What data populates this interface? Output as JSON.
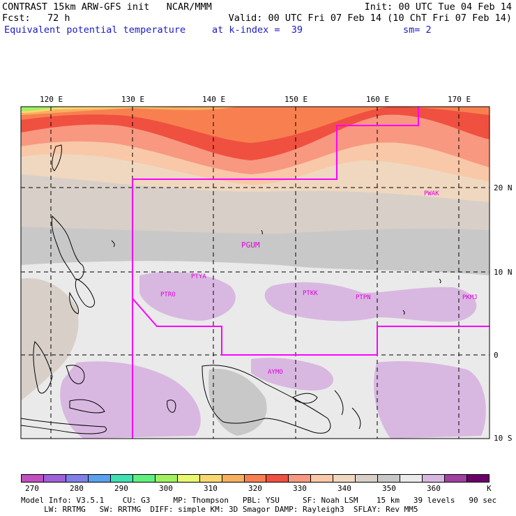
{
  "header": {
    "title": "CONTRAST 15km ARW-GFS init   NCAR/MMM",
    "init": "Init: 00 UTC Tue 04 Feb 14",
    "fcst": "Fcst:   72 h",
    "valid": "Valid: 00 UTC Fri 07 Feb 14 (10 ChT Fri 07 Feb 14)",
    "field": "Equivalent potential temperature",
    "level": "at k-index =  39",
    "smooth": "sm= 2"
  },
  "map": {
    "lon_labels": [
      "120 E",
      "130 E",
      "140 E",
      "150 E",
      "160 E",
      "170 E"
    ],
    "lat_labels": [
      "20 N",
      "10 N",
      "0",
      "10 S"
    ],
    "stations": [
      "PGUM",
      "PTYA",
      "PTRO",
      "PTKK",
      "PTPN",
      "PKMJ",
      "PWAK",
      "AYMO"
    ],
    "station_color": "#e000e0",
    "boundary_color": "#ff00ff"
  },
  "colorbar": {
    "labels": [
      "270",
      "280",
      "290",
      "300",
      "310",
      "320",
      "330",
      "340",
      "350",
      "360"
    ],
    "unit": "K",
    "colors": [
      "#c050c0",
      "#a060d8",
      "#8080e8",
      "#5aa0f0",
      "#40e0b0",
      "#60f080",
      "#a0f060",
      "#e8f870",
      "#f8d870",
      "#f8b060",
      "#f88050",
      "#f05040",
      "#f89880",
      "#f8c8a8",
      "#f0d8c0",
      "#d8d0c8",
      "#c8c8c8",
      "#eaeaea",
      "#d8b8e0",
      "#a040a0",
      "#6a006a"
    ]
  },
  "footer": {
    "line1": "Model Info: V3.5.1    CU: G3     MP: Thompson   PBL: YSU     SF: Noah LSM    15 km   39 levels   90 sec",
    "line2": "     LW: RRTMG   SW: RRTMG  DIFF: simple KM: 3D Smagor DAMP: Rayleigh3  SFLAY: Rev MM5"
  }
}
